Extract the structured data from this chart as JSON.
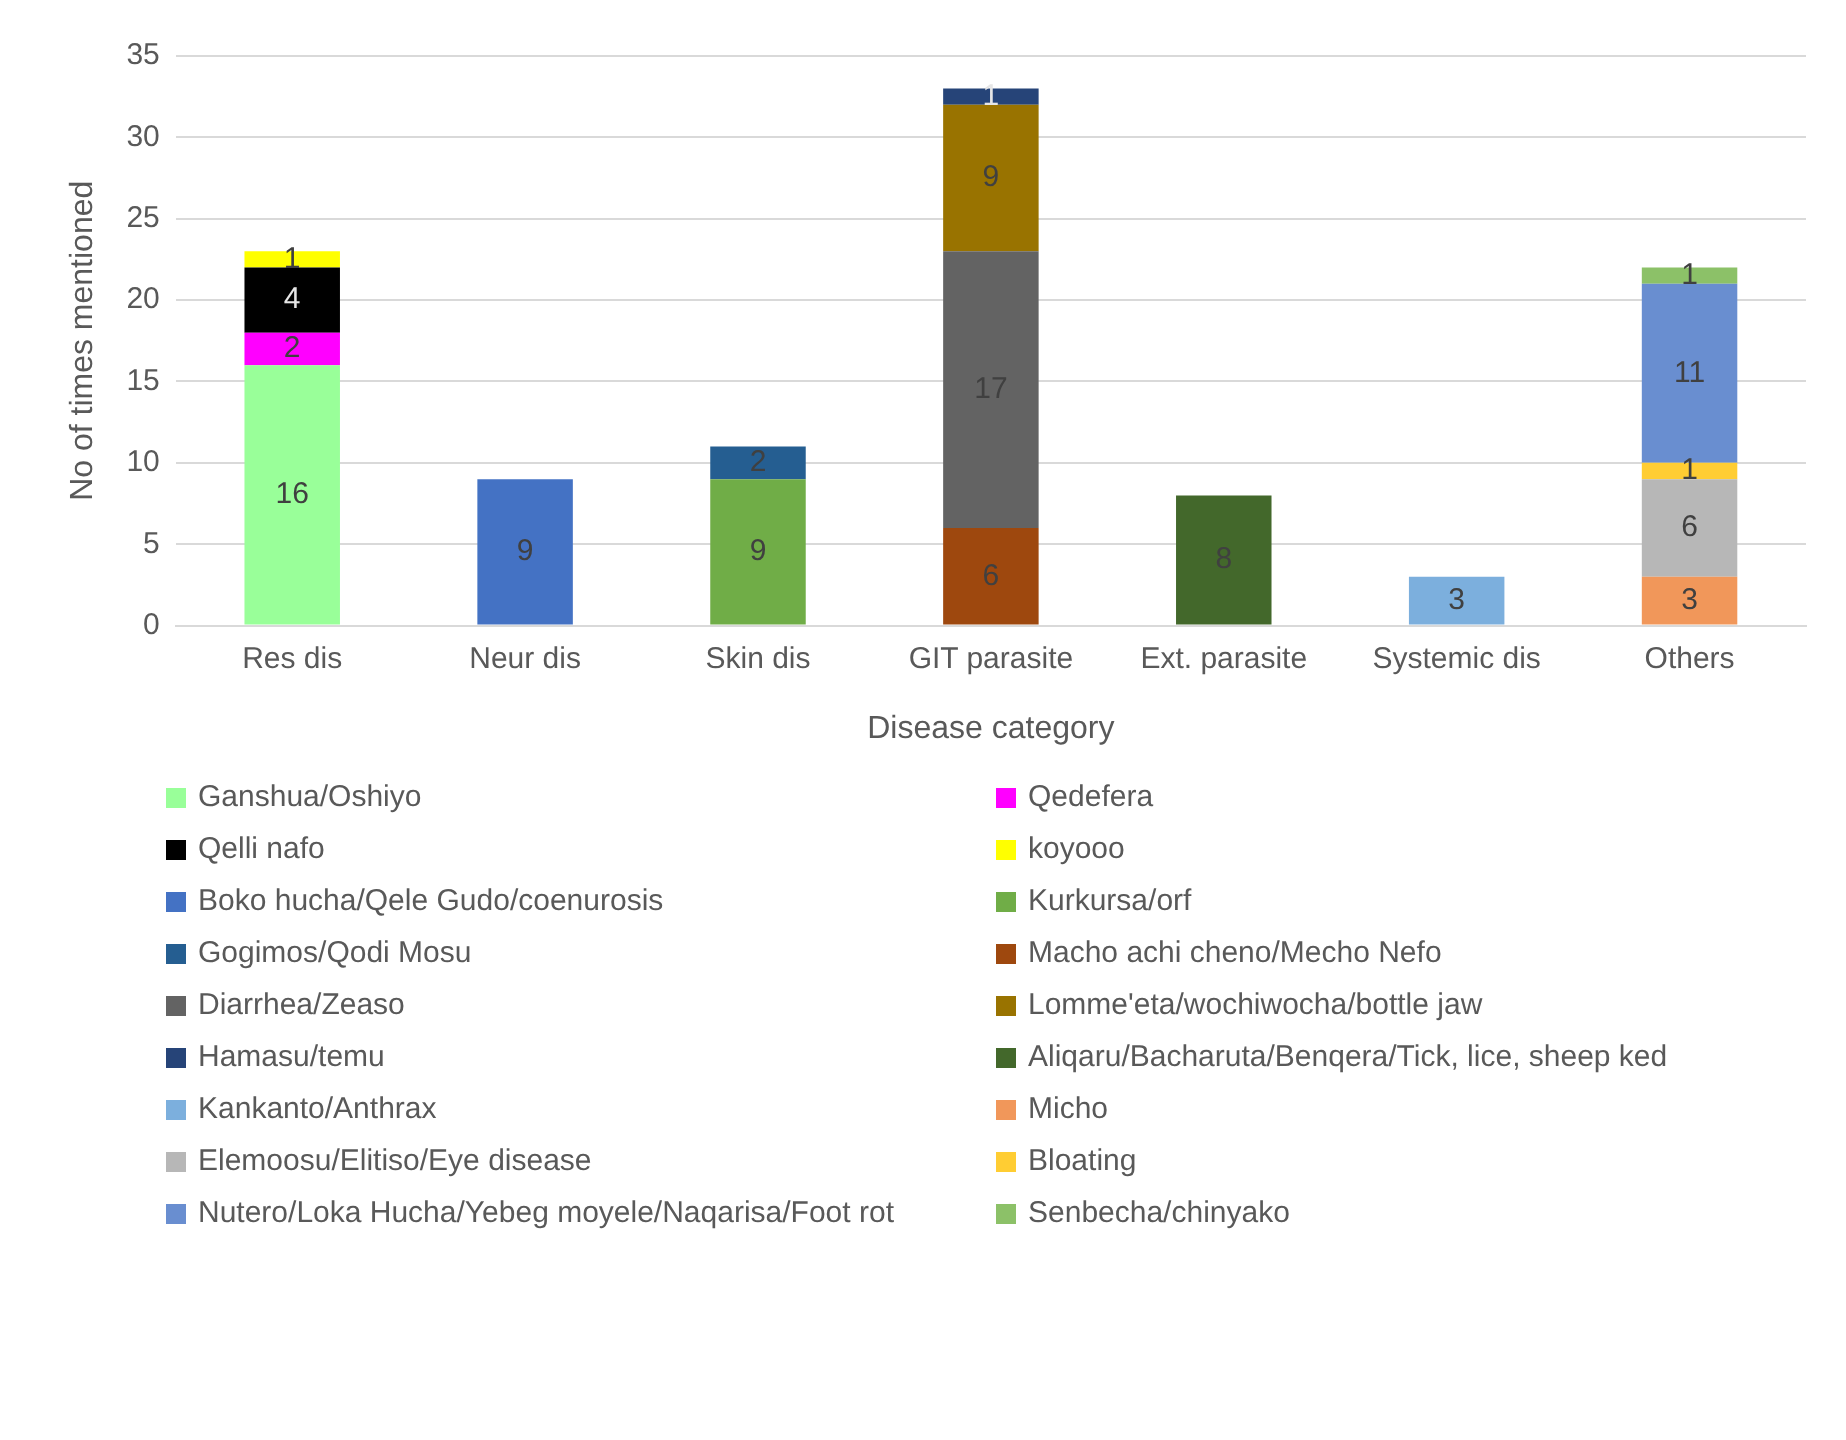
{
  "chart_data": {
    "type": "bar",
    "stacked": true,
    "xlabel": "Disease category",
    "ylabel": "No of times mentioned",
    "categories": [
      "Res dis",
      "Neur dis",
      "Skin dis",
      "GIT parasite",
      "Ext. parasite",
      "Systemic dis",
      "Others"
    ],
    "ylim": [
      0,
      35
    ],
    "yticks": [
      0,
      5,
      10,
      15,
      20,
      25,
      30,
      35
    ],
    "grid": "y",
    "legend": "bottom",
    "data_labels": true,
    "series": [
      {
        "name": "Ganshua/Oshiyo",
        "color": "#99ff99",
        "values": [
          16,
          null,
          null,
          null,
          null,
          null,
          null
        ]
      },
      {
        "name": "Qedefera",
        "color": "#ff00ff",
        "values": [
          2,
          null,
          null,
          null,
          null,
          null,
          null
        ]
      },
      {
        "name": "Qelli nafo",
        "color": "#000000",
        "values": [
          4,
          null,
          null,
          null,
          null,
          null,
          null
        ]
      },
      {
        "name": "koyooo",
        "color": "#ffff00",
        "values": [
          1,
          null,
          null,
          null,
          null,
          null,
          null
        ]
      },
      {
        "name": "Boko hucha/Qele Gudo/coenurosis",
        "color": "#4472c4",
        "values": [
          null,
          9,
          null,
          null,
          null,
          null,
          null
        ]
      },
      {
        "name": "Kurkursa/orf",
        "color": "#70ad47",
        "values": [
          null,
          null,
          9,
          null,
          null,
          null,
          null
        ]
      },
      {
        "name": "Gogimos/Qodi Mosu",
        "color": "#255e91",
        "values": [
          null,
          null,
          2,
          null,
          null,
          null,
          null
        ]
      },
      {
        "name": "Macho achi cheno/Mecho Nefo",
        "color": "#9e480e",
        "values": [
          null,
          null,
          null,
          6,
          null,
          null,
          null
        ]
      },
      {
        "name": "Diarrhea/Zeaso",
        "color": "#636363",
        "values": [
          null,
          null,
          null,
          17,
          null,
          null,
          null
        ]
      },
      {
        "name": "Lomme'eta/wochiwocha/bottle jaw",
        "color": "#997300",
        "values": [
          null,
          null,
          null,
          9,
          null,
          null,
          null
        ]
      },
      {
        "name": "Hamasu/temu",
        "color": "#264478",
        "values": [
          null,
          null,
          null,
          1,
          null,
          null,
          null
        ]
      },
      {
        "name": "Aliqaru/Bacharuta/Benqera/Tick, lice, sheep ked",
        "color": "#43682b",
        "values": [
          null,
          null,
          null,
          null,
          8,
          null,
          null
        ]
      },
      {
        "name": "Kankanto/Anthrax",
        "color": "#7cafdd",
        "values": [
          null,
          null,
          null,
          null,
          null,
          3,
          null
        ]
      },
      {
        "name": "Micho",
        "color": "#f1975a",
        "values": [
          null,
          null,
          null,
          null,
          null,
          null,
          3
        ]
      },
      {
        "name": "Elemoosu/Elitiso/Eye disease",
        "color": "#b7b7b7",
        "values": [
          null,
          null,
          null,
          null,
          null,
          null,
          6
        ]
      },
      {
        "name": "Bloating",
        "color": "#ffcd33",
        "values": [
          null,
          null,
          null,
          null,
          null,
          null,
          1
        ]
      },
      {
        "name": "Nutero/Loka Hucha/Yebeg moyele/Naqarisa/Foot rot",
        "color": "#698ed0",
        "values": [
          null,
          null,
          null,
          null,
          null,
          null,
          11
        ]
      },
      {
        "name": "Senbecha/chinyako",
        "color": "#8cc168",
        "values": [
          null,
          null,
          null,
          null,
          null,
          null,
          1
        ]
      }
    ]
  }
}
